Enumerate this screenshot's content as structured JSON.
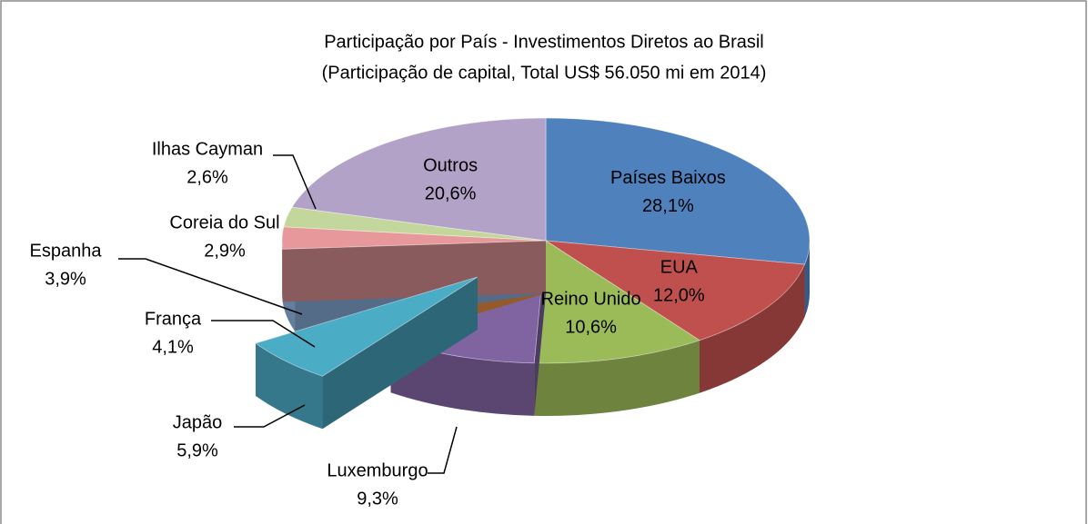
{
  "chart_data": {
    "type": "pie3d",
    "title": "Participação por País - Investimentos Diretos ao Brasil",
    "subtitle": "(Participação de capital, Total US$ 56.050 mi em 2014)",
    "categories": [
      "Países Baixos",
      "EUA",
      "Reino Unido",
      "Luxemburgo",
      "Japão",
      "França",
      "Espanha",
      "Coreia do Sul",
      "Ilhas Cayman",
      "Outros"
    ],
    "values": [
      28.1,
      12.0,
      10.6,
      9.3,
      5.9,
      4.1,
      3.9,
      2.9,
      2.6,
      20.6
    ],
    "value_labels": [
      "28,1%",
      "12,0%",
      "10,6%",
      "9,3%",
      "5,9%",
      "4,1%",
      "3,9%",
      "2,9%",
      "2,6%",
      "20,6%"
    ],
    "colors": [
      "#4f81bd",
      "#c0504d",
      "#9bbb59",
      "#8064a2",
      "#4bacc6",
      "#f79646",
      "#8eb4e3",
      "#e6989a",
      "#c3d69b",
      "#b3a2c7"
    ]
  }
}
